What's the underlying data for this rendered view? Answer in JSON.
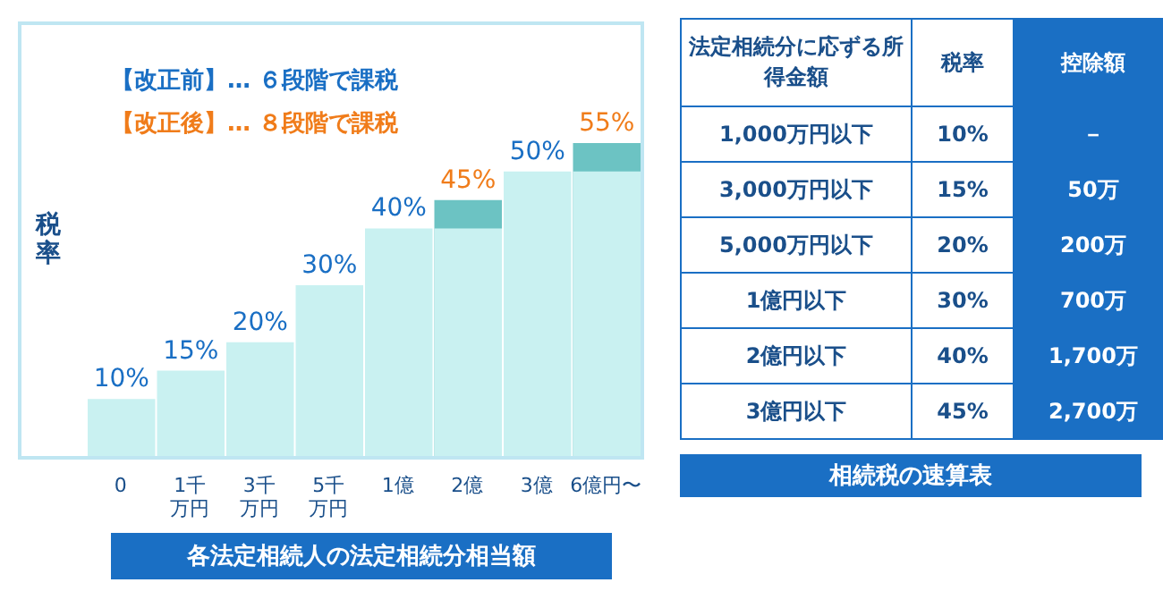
{
  "chart_data": [
    {
      "type": "bar",
      "ylabel": "税率",
      "xlabel": "各法定相続人の法定相続分相当額",
      "categories": [
        "0",
        "1千万円",
        "3千万円",
        "5千万円",
        "1億",
        "2億",
        "3億",
        "6億円〜"
      ],
      "series": [
        {
          "color": "#6cc3c3",
          "values": [
            null,
            null,
            null,
            null,
            null,
            45,
            null,
            55
          ],
          "value_labels": [
            null,
            null,
            null,
            null,
            null,
            "45%",
            null,
            "55%"
          ]
        },
        {
          "color": "#c9f1f1",
          "values": [
            10,
            15,
            20,
            30,
            40,
            40,
            50,
            50
          ],
          "value_labels": [
            "10%",
            "15%",
            "20%",
            "30%",
            "40%",
            null,
            "50%",
            null
          ]
        }
      ],
      "annotations": [
        "【改正前】… ６段階で課税",
        "【改正後】… ８段階で課税"
      ],
      "tick_labels": "x"
    },
    {
      "type": "other",
      "title": "相続税の速算表",
      "annotations": [
        "法定相続分に応ずる所得金額",
        "税率",
        "控除額",
        "1,000万円以下",
        "10%",
        "－",
        "3,000万円以下",
        "15%",
        "50万",
        "5,000万円以下",
        "20%",
        "200万",
        "1億円以下",
        "30%",
        "700万",
        "2億円以下",
        "40%",
        "1,700万",
        "3億円以下",
        "45%",
        "2,700万"
      ]
    }
  ]
}
